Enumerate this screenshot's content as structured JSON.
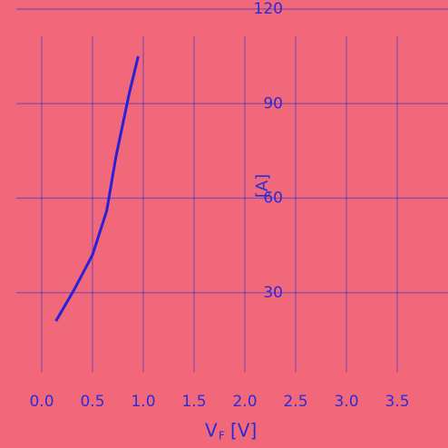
{
  "chart_data": {
    "type": "line",
    "x_label_symbol": "V",
    "x_label_subscript": "F",
    "x_label_unit": "[V]",
    "y_label": "[A]",
    "x": [
      0.14,
      0.32,
      0.5,
      0.64,
      0.73,
      0.86,
      0.95
    ],
    "series": [
      {
        "color": "#2b1fd8",
        "values": [
          21,
          31,
          42,
          56,
          73,
          93,
          105
        ]
      }
    ],
    "xlim": [
      -0.25,
      4.0
    ],
    "xticks": [
      {
        "value": 0,
        "label": "0.0"
      },
      0.5,
      {
        "value": 1,
        "label": "1.0"
      },
      1.5,
      {
        "value": 2,
        "label": "2.0"
      },
      2.5,
      {
        "value": 3,
        "label": "3.0"
      },
      3.5
    ],
    "ylim": [
      0,
      120
    ],
    "yticks": [
      30,
      60,
      90,
      120
    ],
    "grid": true
  }
}
